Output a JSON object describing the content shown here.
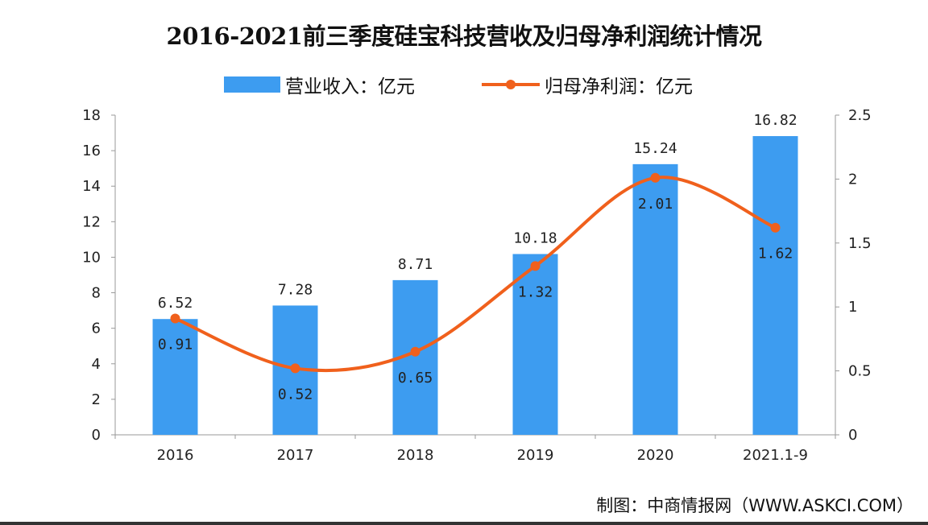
{
  "chart_data": {
    "type": "bar+line",
    "title": "2016-2021前三季度硅宝科技营收及归母净利润统计情况",
    "categories": [
      "2016",
      "2017",
      "2018",
      "2019",
      "2020",
      "2021.1-9"
    ],
    "series": [
      {
        "name": "营业收入：亿元",
        "type": "bar",
        "axis": "left",
        "color": "#3d9cf0",
        "values": [
          6.52,
          7.28,
          8.71,
          10.18,
          15.24,
          16.82
        ],
        "labels": [
          "6.52",
          "7.28",
          "8.71",
          "10.18",
          "15.24",
          "16.82"
        ]
      },
      {
        "name": "归母净利润：亿元",
        "type": "line",
        "axis": "right",
        "smooth": true,
        "color": "#f0601c",
        "values": [
          0.91,
          0.52,
          0.65,
          1.32,
          2.01,
          1.62
        ],
        "labels": [
          "0.91",
          "0.52",
          "0.65",
          "1.32",
          "2.01",
          "1.62"
        ]
      }
    ],
    "ylim_left": [
      0,
      18
    ],
    "yticks_left": [
      "0",
      "2",
      "4",
      "6",
      "8",
      "10",
      "12",
      "14",
      "16",
      "18"
    ],
    "ylim_right": [
      0,
      2.5
    ],
    "yticks_right": [
      "0",
      "0.5",
      "1",
      "1.5",
      "2",
      "2.5"
    ],
    "grid": false,
    "legend": "top-center"
  },
  "source": "制图：中商情报网（WWW.ASKCI.COM）"
}
